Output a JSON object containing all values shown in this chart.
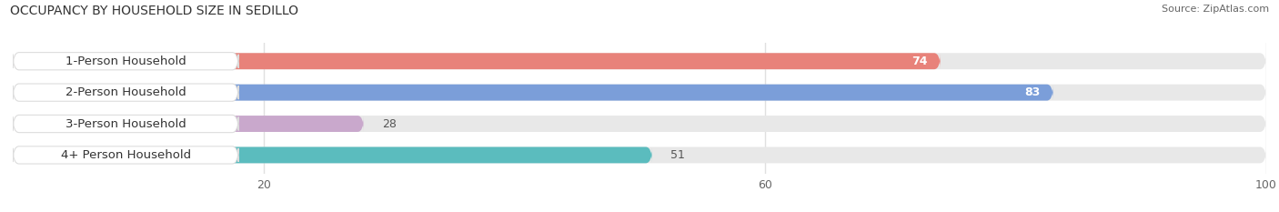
{
  "title": "OCCUPANCY BY HOUSEHOLD SIZE IN SEDILLO",
  "source": "Source: ZipAtlas.com",
  "categories": [
    "1-Person Household",
    "2-Person Household",
    "3-Person Household",
    "4+ Person Household"
  ],
  "values": [
    74,
    83,
    28,
    51
  ],
  "bar_colors": [
    "#E8827A",
    "#7B9ED9",
    "#C9A8CC",
    "#5BBCBE"
  ],
  "xlim": [
    0,
    100
  ],
  "xticks": [
    20,
    60,
    100
  ],
  "background_color": "#ffffff",
  "bar_bg_color": "#e8e8e8",
  "label_box_color": "#ffffff",
  "label_box_edge_color": "#dddddd",
  "title_fontsize": 10,
  "source_fontsize": 8,
  "label_fontsize": 9.5,
  "value_fontsize": 9,
  "bar_height": 0.52
}
